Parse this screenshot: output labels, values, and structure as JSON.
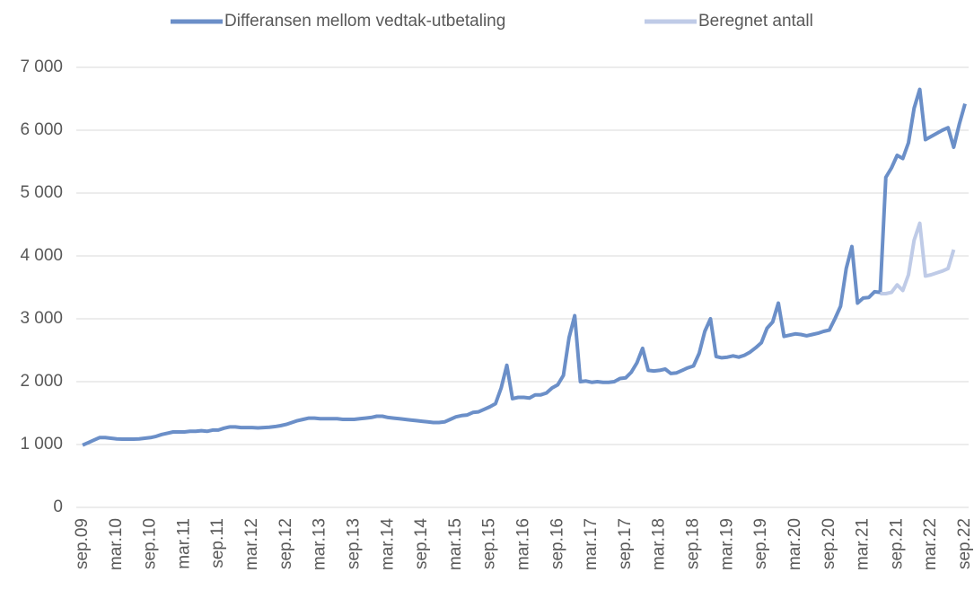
{
  "chart_data": {
    "type": "line",
    "categories": [
      "sep.09",
      null,
      null,
      null,
      null,
      null,
      "mar.10",
      null,
      null,
      null,
      null,
      null,
      "sep.10",
      null,
      null,
      null,
      null,
      null,
      "mar.11",
      null,
      null,
      null,
      null,
      null,
      "sep.11",
      null,
      null,
      null,
      null,
      null,
      "mar.12",
      null,
      null,
      null,
      null,
      null,
      "sep.12",
      null,
      null,
      null,
      null,
      null,
      "mar.13",
      null,
      null,
      null,
      null,
      null,
      "sep.13",
      null,
      null,
      null,
      null,
      null,
      "mar.14",
      null,
      null,
      null,
      null,
      null,
      "sep.14",
      null,
      null,
      null,
      null,
      null,
      "mar.15",
      null,
      null,
      null,
      null,
      null,
      "sep.15",
      null,
      null,
      null,
      null,
      null,
      "mar.16",
      null,
      null,
      null,
      null,
      null,
      "sep.16",
      null,
      null,
      null,
      null,
      null,
      "mar.17",
      null,
      null,
      null,
      null,
      null,
      "sep.17",
      null,
      null,
      null,
      null,
      null,
      "mar.18",
      null,
      null,
      null,
      null,
      null,
      "sep.18",
      null,
      null,
      null,
      null,
      null,
      "mar.19",
      null,
      null,
      null,
      null,
      null,
      "sep.19",
      null,
      null,
      null,
      null,
      null,
      "mar.20",
      null,
      null,
      null,
      null,
      null,
      "sep.20",
      null,
      null,
      null,
      null,
      null,
      "mar.21",
      null,
      null,
      null,
      null,
      null,
      "sep.21",
      null,
      null,
      null,
      null,
      null,
      "mar.22",
      null,
      null,
      null,
      null,
      null,
      "sep.22"
    ],
    "series": [
      {
        "name": "Differansen mellom vedtak-utbetaling",
        "color": "#6b8fc8",
        "values": [
          990,
          1030,
          1070,
          1110,
          1110,
          1100,
          1090,
          1085,
          1085,
          1085,
          1090,
          1100,
          1110,
          1130,
          1160,
          1180,
          1200,
          1200,
          1200,
          1210,
          1210,
          1220,
          1210,
          1230,
          1230,
          1260,
          1280,
          1280,
          1270,
          1270,
          1270,
          1265,
          1270,
          1275,
          1285,
          1300,
          1320,
          1350,
          1380,
          1400,
          1420,
          1420,
          1410,
          1410,
          1410,
          1410,
          1400,
          1400,
          1400,
          1410,
          1420,
          1430,
          1450,
          1450,
          1430,
          1420,
          1410,
          1400,
          1390,
          1380,
          1370,
          1360,
          1350,
          1350,
          1360,
          1400,
          1440,
          1460,
          1470,
          1510,
          1520,
          1560,
          1600,
          1650,
          1900,
          2260,
          1730,
          1750,
          1750,
          1740,
          1790,
          1790,
          1820,
          1900,
          1950,
          2100,
          2700,
          3050,
          2000,
          2010,
          1990,
          2000,
          1990,
          1990,
          2000,
          2050,
          2060,
          2150,
          2300,
          2530,
          2180,
          2170,
          2180,
          2200,
          2130,
          2140,
          2180,
          2220,
          2250,
          2450,
          2800,
          3000,
          2400,
          2380,
          2390,
          2410,
          2390,
          2420,
          2470,
          2540,
          2620,
          2850,
          2950,
          3250,
          2720,
          2740,
          2760,
          2750,
          2730,
          2750,
          2770,
          2800,
          2820,
          3000,
          3200,
          3800,
          4150,
          3250,
          3330,
          3340,
          3430,
          3420,
          5250,
          5400,
          5600,
          5550,
          5800,
          6350,
          6650,
          5850,
          5900,
          5950,
          6000,
          6040,
          5730,
          6100,
          6420
        ]
      },
      {
        "name": "Beregnet antall",
        "color": "#bfcbe7",
        "values": [
          null,
          null,
          null,
          null,
          null,
          null,
          null,
          null,
          null,
          null,
          null,
          null,
          null,
          null,
          null,
          null,
          null,
          null,
          null,
          null,
          null,
          null,
          null,
          null,
          null,
          null,
          null,
          null,
          null,
          null,
          null,
          null,
          null,
          null,
          null,
          null,
          null,
          null,
          null,
          null,
          null,
          null,
          null,
          null,
          null,
          null,
          null,
          null,
          null,
          null,
          null,
          null,
          null,
          null,
          null,
          null,
          null,
          null,
          null,
          null,
          null,
          null,
          null,
          null,
          null,
          null,
          null,
          null,
          null,
          null,
          null,
          null,
          null,
          null,
          null,
          null,
          null,
          null,
          null,
          null,
          null,
          null,
          null,
          null,
          null,
          null,
          null,
          null,
          null,
          null,
          null,
          null,
          null,
          null,
          null,
          null,
          null,
          null,
          null,
          null,
          null,
          null,
          null,
          null,
          null,
          null,
          null,
          null,
          null,
          null,
          null,
          null,
          null,
          null,
          null,
          null,
          null,
          null,
          null,
          null,
          null,
          null,
          null,
          null,
          null,
          null,
          null,
          null,
          null,
          null,
          null,
          null,
          null,
          null,
          null,
          null,
          null,
          null,
          null,
          null,
          null,
          3400,
          3400,
          3420,
          3540,
          3450,
          3700,
          4250,
          4520,
          3680,
          3700,
          3730,
          3760,
          3800,
          4100,
          null,
          null
        ]
      }
    ],
    "ylim": [
      0,
      7000
    ],
    "yticks": [
      0,
      {
        "value": 1000,
        "label": "1 000"
      },
      {
        "value": 2000,
        "label": "2 000"
      },
      {
        "value": 3000,
        "label": "3 000"
      },
      {
        "value": 4000,
        "label": "4 000"
      },
      {
        "value": 5000,
        "label": "5 000"
      },
      {
        "value": 6000,
        "label": "6 000"
      },
      {
        "value": 7000,
        "label": "7 000"
      }
    ],
    "grid": true,
    "legend": "top"
  }
}
